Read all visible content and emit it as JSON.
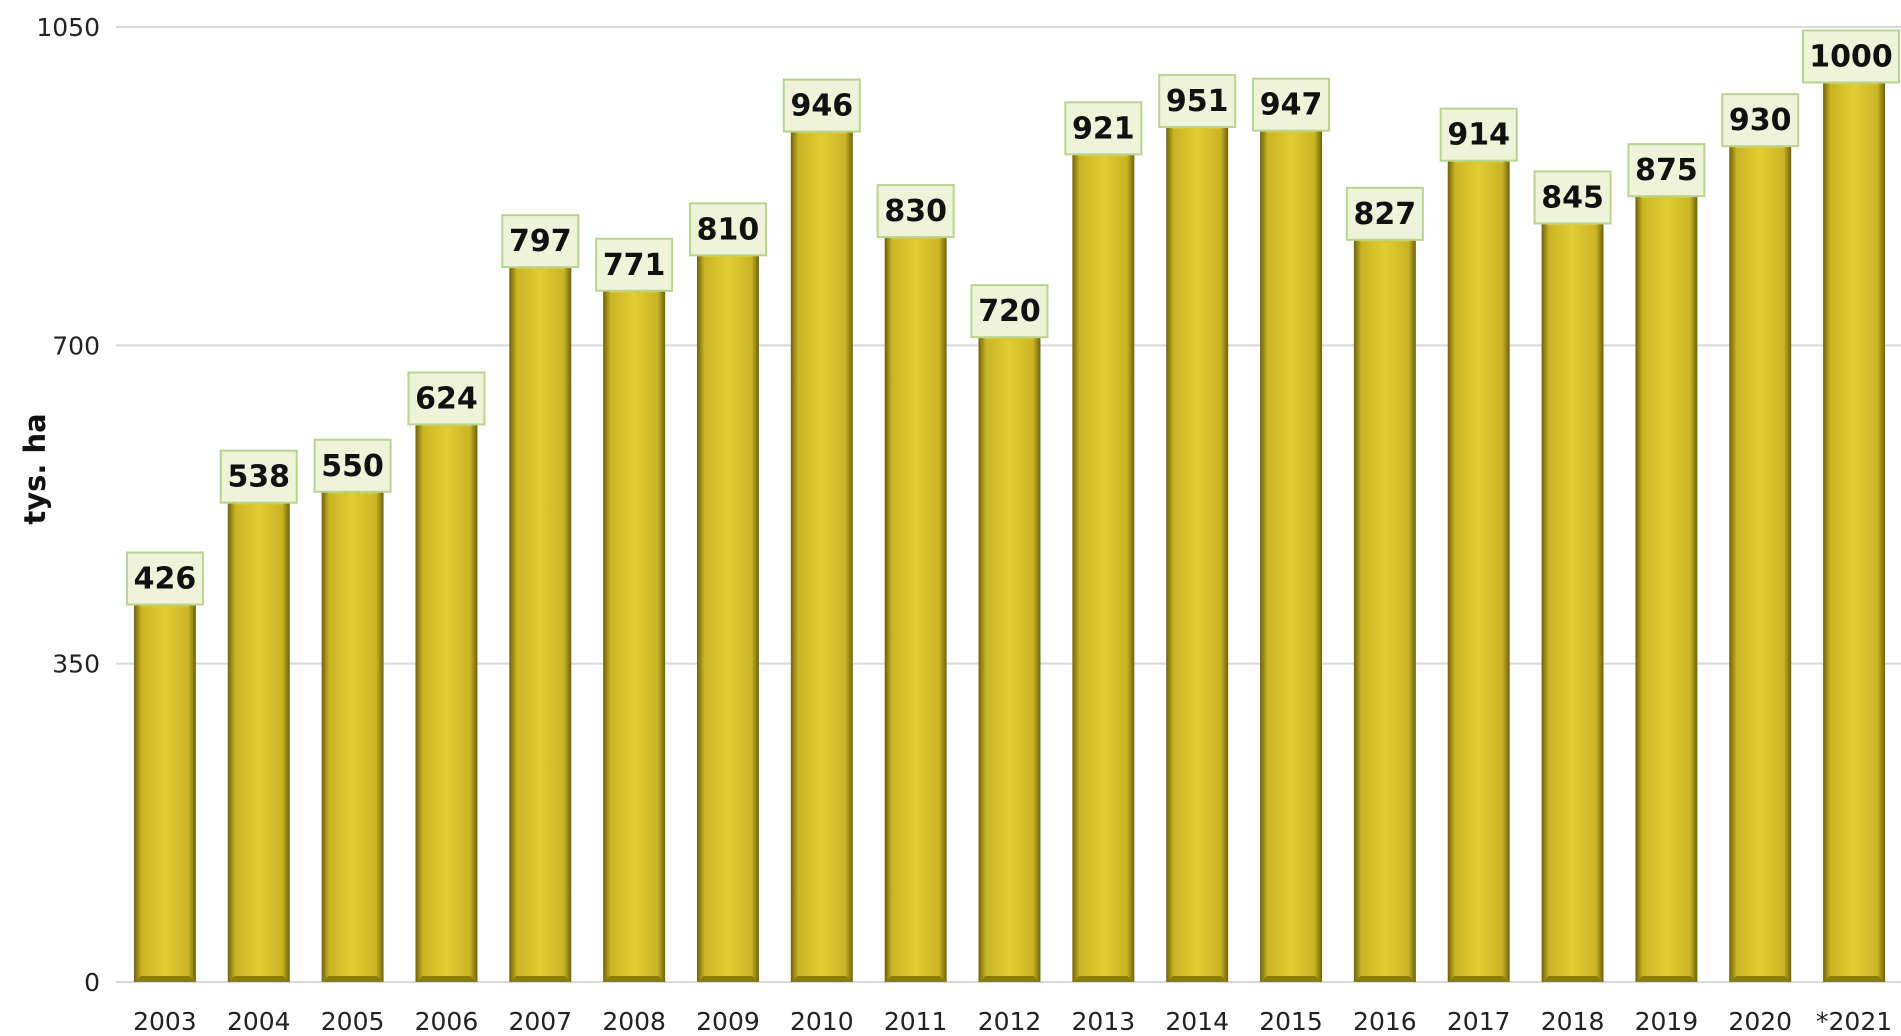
{
  "chart_data": {
    "type": "bar",
    "categories": [
      "2003",
      "2004",
      "2005",
      "2006",
      "2007",
      "2008",
      "2009",
      "2010",
      "2011",
      "2012",
      "2013",
      "2014",
      "2015",
      "2016",
      "2017",
      "2018",
      "2019",
      "2020",
      "*2021"
    ],
    "values": [
      426,
      538,
      550,
      624,
      797,
      771,
      810,
      946,
      830,
      720,
      921,
      951,
      947,
      827,
      914,
      845,
      875,
      930,
      1000
    ],
    "ylabel": "tys. ha",
    "xlabel": "",
    "ylim": [
      0,
      1050
    ],
    "yticks": [
      "0",
      "350",
      "700",
      "1050"
    ],
    "grid": true,
    "colors": {
      "bar": "#d9c32e",
      "bar_light": "#ece06a",
      "bar_dark": "#7a6c0c",
      "label_fill": "#eef3d9",
      "label_border": "#b9d48f",
      "grid": "#d9d9d9"
    }
  }
}
